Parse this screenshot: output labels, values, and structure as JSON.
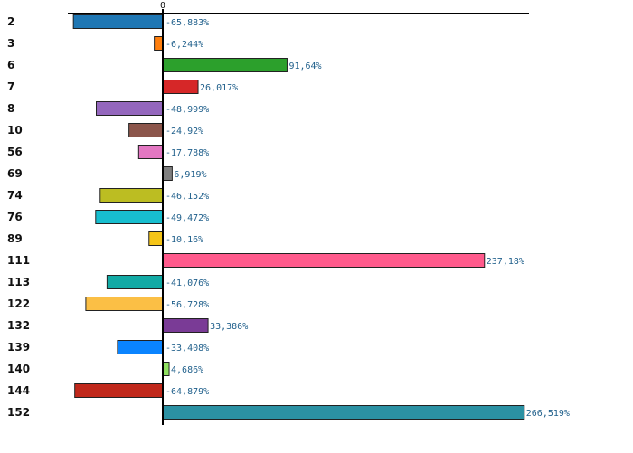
{
  "chart_data": {
    "type": "bar",
    "orientation": "horizontal",
    "title": "",
    "xlabel": "",
    "ylabel": "",
    "zero_label": "0",
    "xlim": [
      -72,
      285
    ],
    "categories": [
      "2",
      "3",
      "6",
      "7",
      "8",
      "10",
      "56",
      "69",
      "74",
      "76",
      "89",
      "111",
      "113",
      "122",
      "132",
      "139",
      "140",
      "144",
      "152"
    ],
    "values": [
      -65.883,
      -6.244,
      91.64,
      26.017,
      -48.999,
      -24.92,
      -17.788,
      6.919,
      -46.152,
      -49.472,
      -10.16,
      237.18,
      -41.076,
      -56.728,
      33.386,
      -33.408,
      4.686,
      -64.879,
      266.519
    ],
    "value_labels": [
      "-65,883%",
      "-6,244%",
      "91,64%",
      "26,017%",
      "-48,999%",
      "-24,92%",
      "-17,788%",
      "6,919%",
      "-46,152%",
      "-49,472%",
      "-10,16%",
      "237,18%",
      "-41,076%",
      "-56,728%",
      "33,386%",
      "-33,408%",
      "4,686%",
      "-64,879%",
      "266,519%"
    ],
    "colors": [
      "#1f77b4",
      "#ff7f0e",
      "#2ca02c",
      "#d62728",
      "#9467bd",
      "#8c564b",
      "#e377c2",
      "#7f7f7f",
      "#bcbd22",
      "#17becf",
      "#f5c518",
      "#ff5a8c",
      "#12aaa5",
      "#fbbf45",
      "#7a3b96",
      "#0a84ff",
      "#8fe060",
      "#c0281b",
      "#2b91a3"
    ],
    "grid": false,
    "legend": "none"
  }
}
